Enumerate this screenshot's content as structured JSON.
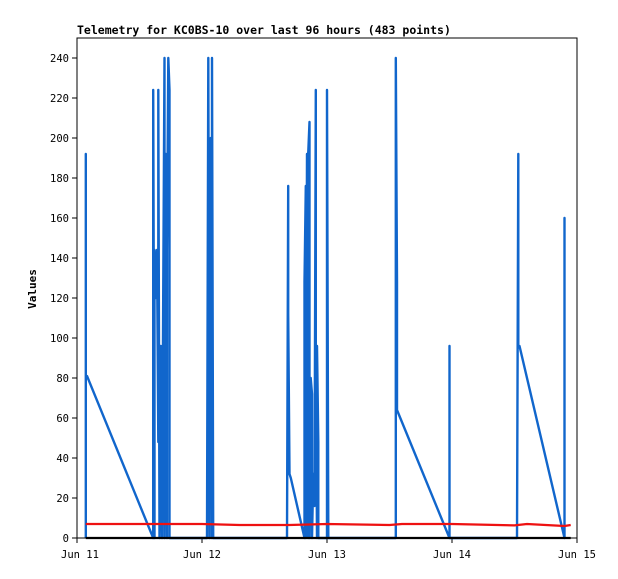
{
  "chart_data": {
    "type": "line",
    "title": "Telemetry for KC0BS-10 over last 96 hours (483 points)",
    "xlabel": "",
    "ylabel": "Values",
    "x_unit": "days",
    "xlim": [
      11.0,
      15.0
    ],
    "ylim": [
      0,
      250
    ],
    "y_ticks": [
      0,
      20,
      40,
      60,
      80,
      100,
      120,
      140,
      160,
      180,
      200,
      220,
      240
    ],
    "x_ticks": [
      {
        "value": 11,
        "label": "Jun 11"
      },
      {
        "value": 12,
        "label": "Jun 12"
      },
      {
        "value": 13,
        "label": "Jun 13"
      },
      {
        "value": 14,
        "label": "Jun 14"
      },
      {
        "value": 15,
        "label": "Jun 15"
      }
    ],
    "grid": false,
    "legend": "none",
    "series": [
      {
        "color": "#1166cc",
        "points": [
          [
            11.07,
            0
          ],
          [
            11.07,
            192
          ],
          [
            11.07,
            80
          ],
          [
            11.08,
            81
          ],
          [
            11.61,
            0
          ],
          [
            11.61,
            224
          ],
          [
            11.62,
            0
          ],
          [
            11.62,
            144
          ],
          [
            11.63,
            120
          ],
          [
            11.64,
            144
          ],
          [
            11.65,
            48
          ],
          [
            11.65,
            224
          ],
          [
            11.66,
            0
          ],
          [
            11.67,
            96
          ],
          [
            11.68,
            0
          ],
          [
            11.69,
            120
          ],
          [
            11.7,
            240
          ],
          [
            11.7,
            0
          ],
          [
            11.71,
            192
          ],
          [
            11.72,
            0
          ],
          [
            11.72,
            144
          ],
          [
            11.73,
            240
          ],
          [
            11.74,
            224
          ],
          [
            11.74,
            0
          ],
          [
            12.04,
            0
          ],
          [
            12.05,
            240
          ],
          [
            12.06,
            0
          ],
          [
            12.06,
            40
          ],
          [
            12.07,
            120
          ],
          [
            12.07,
            200
          ],
          [
            12.08,
            0
          ],
          [
            12.08,
            240
          ],
          [
            12.09,
            0
          ],
          [
            12.68,
            0
          ],
          [
            12.69,
            176
          ],
          [
            12.69,
            112
          ],
          [
            12.7,
            32
          ],
          [
            12.71,
            30
          ],
          [
            12.82,
            0
          ],
          [
            12.82,
            128
          ],
          [
            12.83,
            176
          ],
          [
            12.83,
            0
          ],
          [
            12.84,
            192
          ],
          [
            12.85,
            0
          ],
          [
            12.85,
            192
          ],
          [
            12.86,
            208
          ],
          [
            12.86,
            0
          ],
          [
            12.87,
            80
          ],
          [
            12.88,
            72
          ],
          [
            12.88,
            0
          ],
          [
            12.89,
            32
          ],
          [
            12.9,
            16
          ],
          [
            12.91,
            224
          ],
          [
            12.91,
            96
          ],
          [
            12.92,
            0
          ],
          [
            12.92,
            96
          ],
          [
            12.93,
            48
          ],
          [
            12.93,
            0
          ],
          [
            13.0,
            0
          ],
          [
            13.0,
            224
          ],
          [
            13.01,
            0
          ],
          [
            13.55,
            0
          ],
          [
            13.55,
            240
          ],
          [
            13.56,
            128
          ],
          [
            13.56,
            64
          ],
          [
            13.98,
            0
          ],
          [
            13.98,
            96
          ],
          [
            13.98,
            0
          ],
          [
            14.52,
            0
          ],
          [
            14.53,
            192
          ],
          [
            14.53,
            96
          ],
          [
            14.54,
            96
          ],
          [
            14.9,
            0
          ],
          [
            14.9,
            160
          ],
          [
            14.9,
            0
          ]
        ]
      },
      {
        "color": "#ee1111",
        "points": [
          [
            11.07,
            7
          ],
          [
            11.5,
            7
          ],
          [
            12.0,
            7
          ],
          [
            12.3,
            6.5
          ],
          [
            12.7,
            6.5
          ],
          [
            13.0,
            7
          ],
          [
            13.5,
            6.5
          ],
          [
            13.6,
            7
          ],
          [
            14.0,
            7
          ],
          [
            14.5,
            6.3
          ],
          [
            14.6,
            7
          ],
          [
            14.9,
            6
          ],
          [
            14.95,
            6.5
          ]
        ]
      },
      {
        "color": "#000000",
        "points": [
          [
            11.07,
            0
          ],
          [
            14.95,
            0
          ]
        ]
      }
    ]
  }
}
